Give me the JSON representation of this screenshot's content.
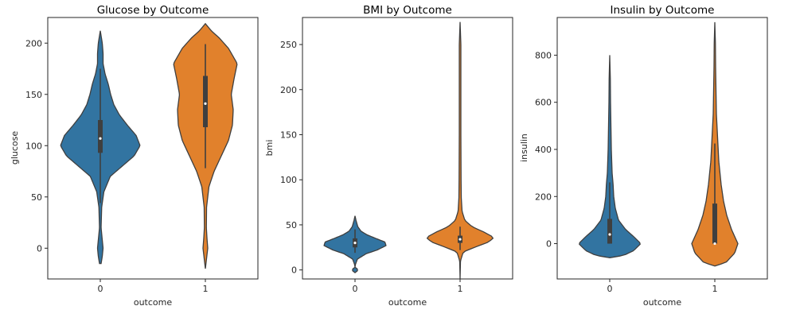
{
  "chart_data": [
    {
      "type": "violin",
      "title": "Glucose by Outcome",
      "xlabel": "outcome",
      "ylabel": "glucose",
      "categories": [
        "0",
        "1"
      ],
      "ylim": [
        -30,
        225
      ],
      "yticks": [
        0,
        50,
        100,
        150,
        200
      ],
      "violins": [
        {
          "category": "0",
          "color": "#3274a1",
          "median": 107,
          "q1": 93,
          "q3": 125,
          "whisker_low": 44,
          "whisker_high": 175,
          "range": [
            -15,
            212
          ],
          "density": [
            [
              -15,
              0.02
            ],
            [
              -8,
              0.05
            ],
            [
              0,
              0.07
            ],
            [
              8,
              0.05
            ],
            [
              20,
              0.02
            ],
            [
              40,
              0.035
            ],
            [
              55,
              0.09
            ],
            [
              70,
              0.25
            ],
            [
              80,
              0.55
            ],
            [
              90,
              0.85
            ],
            [
              100,
              1.0
            ],
            [
              110,
              0.9
            ],
            [
              120,
              0.68
            ],
            [
              130,
              0.48
            ],
            [
              140,
              0.34
            ],
            [
              150,
              0.26
            ],
            [
              160,
              0.2
            ],
            [
              170,
              0.12
            ],
            [
              180,
              0.07
            ],
            [
              190,
              0.07
            ],
            [
              200,
              0.05
            ],
            [
              212,
              0.0
            ]
          ]
        },
        {
          "category": "1",
          "color": "#e1812c",
          "median": 141,
          "q1": 118,
          "q3": 168,
          "whisker_low": 78,
          "whisker_high": 199,
          "range": [
            -20,
            219
          ],
          "density": [
            [
              -20,
              0.0
            ],
            [
              -10,
              0.03
            ],
            [
              0,
              0.06
            ],
            [
              10,
              0.04
            ],
            [
              20,
              0.025
            ],
            [
              40,
              0.03
            ],
            [
              60,
              0.09
            ],
            [
              75,
              0.22
            ],
            [
              90,
              0.4
            ],
            [
              105,
              0.58
            ],
            [
              120,
              0.68
            ],
            [
              135,
              0.7
            ],
            [
              150,
              0.65
            ],
            [
              165,
              0.72
            ],
            [
              180,
              0.8
            ],
            [
              195,
              0.58
            ],
            [
              205,
              0.35
            ],
            [
              212,
              0.15
            ],
            [
              219,
              0.0
            ]
          ]
        }
      ]
    },
    {
      "type": "violin",
      "title": "BMI by Outcome",
      "xlabel": "outcome",
      "ylabel": "bmi",
      "categories": [
        "0",
        "1"
      ],
      "ylim": [
        -10,
        280
      ],
      "yticks": [
        0,
        50,
        100,
        150,
        200,
        250
      ],
      "violins": [
        {
          "category": "0",
          "color": "#3274a1",
          "median": 30,
          "q1": 25,
          "q3": 35,
          "whisker_low": 19,
          "whisker_high": 45,
          "range": [
            -3,
            60
          ],
          "density": [
            [
              -3,
              0.0
            ],
            [
              -1,
              0.06
            ],
            [
              1,
              0.06
            ],
            [
              3,
              0.0
            ],
            [
              6,
              0.01
            ],
            [
              12,
              0.06
            ],
            [
              18,
              0.28
            ],
            [
              22,
              0.55
            ],
            [
              27,
              0.78
            ],
            [
              31,
              0.75
            ],
            [
              35,
              0.52
            ],
            [
              39,
              0.3
            ],
            [
              43,
              0.15
            ],
            [
              48,
              0.07
            ],
            [
              55,
              0.025
            ],
            [
              60,
              0.0
            ]
          ]
        },
        {
          "category": "1",
          "color": "#e1812c",
          "median": 34,
          "q1": 30,
          "q3": 38,
          "whisker_low": 22,
          "whisker_high": 48,
          "range": [
            -10,
            275
          ],
          "density": [
            [
              -10,
              0.0
            ],
            [
              0,
              0.005
            ],
            [
              10,
              0.01
            ],
            [
              20,
              0.08
            ],
            [
              26,
              0.42
            ],
            [
              31,
              0.72
            ],
            [
              36,
              0.85
            ],
            [
              42,
              0.6
            ],
            [
              48,
              0.3
            ],
            [
              55,
              0.12
            ],
            [
              65,
              0.05
            ],
            [
              80,
              0.03
            ],
            [
              100,
              0.025
            ],
            [
              150,
              0.02
            ],
            [
              200,
              0.02
            ],
            [
              250,
              0.02
            ],
            [
              275,
              0.0
            ]
          ]
        }
      ]
    },
    {
      "type": "violin",
      "title": "Insulin by Outcome",
      "xlabel": "outcome",
      "ylabel": "insulin",
      "categories": [
        "0",
        "1"
      ],
      "ylim": [
        -150,
        960
      ],
      "yticks": [
        0,
        200,
        400,
        600,
        800
      ],
      "violins": [
        {
          "category": "0",
          "color": "#3274a1",
          "median": 39,
          "q1": 0,
          "q3": 105,
          "whisker_low": 0,
          "whisker_high": 260,
          "range": [
            -60,
            800
          ],
          "density": [
            [
              -60,
              0.0
            ],
            [
              -50,
              0.35
            ],
            [
              -30,
              0.6
            ],
            [
              0,
              0.78
            ],
            [
              30,
              0.6
            ],
            [
              60,
              0.4
            ],
            [
              100,
              0.22
            ],
            [
              150,
              0.14
            ],
            [
              200,
              0.1
            ],
            [
              250,
              0.085
            ],
            [
              300,
              0.06
            ],
            [
              400,
              0.04
            ],
            [
              500,
              0.03
            ],
            [
              600,
              0.02
            ],
            [
              700,
              0.015
            ],
            [
              800,
              0.0
            ]
          ]
        },
        {
          "category": "1",
          "color": "#e1812c",
          "median": 0,
          "q1": 0,
          "q3": 170,
          "whisker_low": 0,
          "whisker_high": 425,
          "range": [
            -95,
            940
          ],
          "density": [
            [
              -95,
              0.0
            ],
            [
              -80,
              0.28
            ],
            [
              -40,
              0.5
            ],
            [
              0,
              0.58
            ],
            [
              60,
              0.42
            ],
            [
              120,
              0.3
            ],
            [
              180,
              0.22
            ],
            [
              250,
              0.16
            ],
            [
              350,
              0.1
            ],
            [
              450,
              0.07
            ],
            [
              550,
              0.04
            ],
            [
              650,
              0.03
            ],
            [
              750,
              0.02
            ],
            [
              850,
              0.015
            ],
            [
              940,
              0.0
            ]
          ]
        }
      ]
    }
  ]
}
